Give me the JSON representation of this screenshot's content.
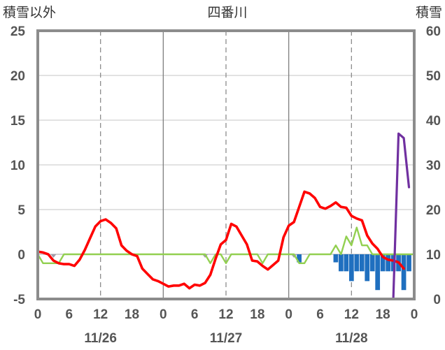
{
  "chart_data": {
    "type": "line",
    "title": "四番川",
    "left_axis_label": "積雪以外",
    "right_axis_label": "積雪",
    "y_left": {
      "min": -5,
      "max": 25,
      "ticks": [
        "-5",
        "0",
        "5",
        "10",
        "15",
        "20",
        "25"
      ]
    },
    "y_right": {
      "min": 0,
      "max": 60,
      "ticks": [
        "0",
        "10",
        "20",
        "30",
        "40",
        "50",
        "60"
      ]
    },
    "x": {
      "start_hour": 0,
      "end_hour": 72,
      "tick_labels": [
        "0",
        "6",
        "12",
        "18",
        "0",
        "6",
        "12",
        "18",
        "0",
        "6",
        "12",
        "18",
        "0"
      ],
      "date_labels": [
        "11/26",
        "11/27",
        "11/28"
      ]
    },
    "grid": true,
    "colors": {
      "temperature": "#ff0000",
      "wind": "#92d050",
      "precip": "#1f6fbf",
      "snow": "#7030a0",
      "gray_markers": "#a09aa8"
    },
    "series": [
      {
        "key": "temperature",
        "axis": "left",
        "values": [
          [
            0,
            0.3
          ],
          [
            1,
            0.2
          ],
          [
            2,
            0.0
          ],
          [
            3,
            -0.7
          ],
          [
            4,
            -1.0
          ],
          [
            5,
            -1.1
          ],
          [
            6,
            -1.1
          ],
          [
            7,
            -1.3
          ],
          [
            8,
            -0.6
          ],
          [
            9,
            0.5
          ],
          [
            10,
            1.8
          ],
          [
            11,
            3.1
          ],
          [
            12,
            3.7
          ],
          [
            13,
            3.9
          ],
          [
            14,
            3.5
          ],
          [
            15,
            2.9
          ],
          [
            16,
            1.0
          ],
          [
            17,
            0.4
          ],
          [
            18,
            0.0
          ],
          [
            19,
            -0.2
          ],
          [
            20,
            -1.6
          ],
          [
            21,
            -2.2
          ],
          [
            22,
            -2.8
          ],
          [
            23,
            -3.0
          ],
          [
            24,
            -3.3
          ],
          [
            25,
            -3.6
          ],
          [
            26,
            -3.5
          ],
          [
            27,
            -3.5
          ],
          [
            28,
            -3.3
          ],
          [
            29,
            -3.8
          ],
          [
            30,
            -3.4
          ],
          [
            31,
            -3.5
          ],
          [
            32,
            -3.2
          ],
          [
            33,
            -2.3
          ],
          [
            34,
            -0.5
          ],
          [
            35,
            1.1
          ],
          [
            36,
            1.6
          ],
          [
            37,
            3.4
          ],
          [
            38,
            3.1
          ],
          [
            39,
            2.1
          ],
          [
            40,
            1.1
          ],
          [
            41,
            -0.7
          ],
          [
            42,
            -0.8
          ],
          [
            43,
            -1.3
          ],
          [
            44,
            -1.7
          ],
          [
            45,
            -1.2
          ],
          [
            46,
            -0.7
          ],
          [
            47,
            1.9
          ],
          [
            48,
            3.2
          ],
          [
            49,
            3.6
          ],
          [
            50,
            5.3
          ],
          [
            51,
            7.0
          ],
          [
            52,
            6.8
          ],
          [
            53,
            6.3
          ],
          [
            54,
            5.3
          ],
          [
            55,
            5.1
          ],
          [
            56,
            5.4
          ],
          [
            57,
            5.8
          ],
          [
            58,
            5.3
          ],
          [
            59,
            5.2
          ],
          [
            60,
            4.3
          ],
          [
            61,
            4.0
          ],
          [
            62,
            3.8
          ],
          [
            63,
            2.1
          ],
          [
            64,
            1.2
          ],
          [
            65,
            0.6
          ],
          [
            66,
            -0.3
          ],
          [
            67,
            -0.6
          ],
          [
            68,
            -0.7
          ],
          [
            69,
            -0.9
          ],
          [
            70,
            -1.6
          ]
        ]
      },
      {
        "key": "wind",
        "axis": "left",
        "values": [
          [
            0,
            0.0
          ],
          [
            1,
            -1.0
          ],
          [
            2,
            -1.0
          ],
          [
            3,
            -1.0
          ],
          [
            4,
            -1.0
          ],
          [
            5,
            0.0
          ],
          [
            6,
            0.0
          ],
          [
            7,
            0.0
          ],
          [
            8,
            0.0
          ],
          [
            9,
            0.0
          ],
          [
            10,
            0.0
          ],
          [
            11,
            0.0
          ],
          [
            12,
            0.0
          ],
          [
            13,
            0.0
          ],
          [
            14,
            0.0
          ],
          [
            15,
            0.0
          ],
          [
            16,
            0.0
          ],
          [
            17,
            0.0
          ],
          [
            18,
            0.0
          ],
          [
            19,
            0.0
          ],
          [
            20,
            0.0
          ],
          [
            21,
            0.0
          ],
          [
            22,
            0.0
          ],
          [
            23,
            0.0
          ],
          [
            24,
            0.0
          ],
          [
            25,
            0.0
          ],
          [
            26,
            0.0
          ],
          [
            27,
            0.0
          ],
          [
            28,
            0.0
          ],
          [
            29,
            0.0
          ],
          [
            30,
            0.0
          ],
          [
            31,
            0.0
          ],
          [
            32,
            0.0
          ],
          [
            33,
            -1.0
          ],
          [
            34,
            0.0
          ],
          [
            35,
            0.0
          ],
          [
            36,
            -1.0
          ],
          [
            37,
            0.0
          ],
          [
            38,
            0.0
          ],
          [
            39,
            0.0
          ],
          [
            40,
            0.0
          ],
          [
            41,
            0.0
          ],
          [
            42,
            0.0
          ],
          [
            43,
            -1.0
          ],
          [
            44,
            0.0
          ],
          [
            45,
            0.0
          ],
          [
            46,
            0.0
          ],
          [
            47,
            0.0
          ],
          [
            48,
            0.0
          ],
          [
            49,
            0.0
          ],
          [
            50,
            -1.0
          ],
          [
            51,
            -1.0
          ],
          [
            52,
            0.0
          ],
          [
            53,
            0.0
          ],
          [
            54,
            0.0
          ],
          [
            55,
            0.0
          ],
          [
            56,
            0.0
          ],
          [
            57,
            1.0
          ],
          [
            58,
            0.0
          ],
          [
            59,
            2.0
          ],
          [
            60,
            1.0
          ],
          [
            61,
            3.0
          ],
          [
            62,
            1.0
          ],
          [
            63,
            1.0
          ],
          [
            64,
            0.0
          ],
          [
            65,
            0.0
          ],
          [
            66,
            0.0
          ],
          [
            67,
            0.0
          ],
          [
            68,
            0.0
          ],
          [
            69,
            0.0
          ],
          [
            70,
            0.0
          ],
          [
            71,
            0.0
          ],
          [
            72,
            0.0
          ]
        ]
      },
      {
        "key": "snow",
        "axis": "right",
        "values": [
          [
            0,
            0
          ],
          [
            1,
            0
          ],
          [
            2,
            0
          ],
          [
            3,
            0
          ],
          [
            4,
            0
          ],
          [
            5,
            0
          ],
          [
            6,
            0
          ],
          [
            7,
            0
          ],
          [
            8,
            0
          ],
          [
            9,
            0
          ],
          [
            10,
            0
          ],
          [
            11,
            0
          ],
          [
            12,
            0
          ],
          [
            13,
            0
          ],
          [
            14,
            0
          ],
          [
            15,
            0
          ],
          [
            16,
            0
          ],
          [
            17,
            0
          ],
          [
            18,
            0
          ],
          [
            19,
            0
          ],
          [
            20,
            0
          ],
          [
            21,
            0
          ],
          [
            22,
            0
          ],
          [
            23,
            0
          ],
          [
            24,
            0
          ],
          [
            25,
            0
          ],
          [
            26,
            0
          ],
          [
            27,
            0
          ],
          [
            28,
            0
          ],
          [
            29,
            0
          ],
          [
            30,
            0
          ],
          [
            31,
            0
          ],
          [
            32,
            0
          ],
          [
            33,
            0
          ],
          [
            34,
            0
          ],
          [
            35,
            0
          ],
          [
            36,
            0
          ],
          [
            37,
            0
          ],
          [
            38,
            0
          ],
          [
            39,
            0
          ],
          [
            40,
            0
          ],
          [
            41,
            0
          ],
          [
            42,
            0
          ],
          [
            43,
            0
          ],
          [
            44,
            0
          ],
          [
            45,
            0
          ],
          [
            46,
            0
          ],
          [
            47,
            0
          ],
          [
            48,
            0
          ],
          [
            49,
            0
          ],
          [
            50,
            0
          ],
          [
            51,
            0
          ],
          [
            52,
            0
          ],
          [
            53,
            0
          ],
          [
            54,
            0
          ],
          [
            55,
            0
          ],
          [
            56,
            0
          ],
          [
            57,
            0
          ],
          [
            58,
            0
          ],
          [
            59,
            0
          ],
          [
            60,
            0
          ],
          [
            61,
            0
          ],
          [
            62,
            0
          ],
          [
            63,
            0
          ],
          [
            64,
            0
          ],
          [
            65,
            0
          ],
          [
            66,
            0
          ],
          [
            67,
            0
          ],
          [
            68,
            0
          ],
          [
            69,
            37
          ],
          [
            70,
            36
          ],
          [
            71,
            25
          ]
        ]
      }
    ],
    "precip_bars": {
      "axis": "left",
      "values": [
        [
          50,
          -0.9
        ],
        [
          57,
          -0.9
        ],
        [
          58,
          -1.9
        ],
        [
          59,
          -1.9
        ],
        [
          60,
          -3.0
        ],
        [
          61,
          -1.9
        ],
        [
          62,
          -1.9
        ],
        [
          63,
          -3.0
        ],
        [
          64,
          -1.9
        ],
        [
          65,
          -4.0
        ],
        [
          66,
          -1.9
        ],
        [
          67,
          -1.9
        ],
        [
          68,
          -1.9
        ],
        [
          69,
          -1.9
        ],
        [
          70,
          -4.0
        ],
        [
          71,
          -1.9
        ]
      ]
    },
    "gray_markers": {
      "axis": "left",
      "values": [
        [
          3,
          0
        ],
        [
          32,
          0
        ],
        [
          49,
          0
        ]
      ]
    }
  }
}
